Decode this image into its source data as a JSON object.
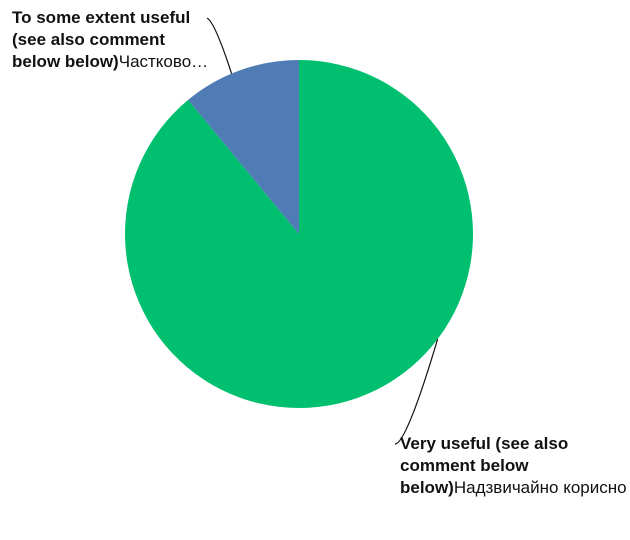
{
  "chart_data": {
    "type": "pie",
    "title": "",
    "start_angle_deg": 0,
    "direction": "clockwise",
    "slices": [
      {
        "label_bold": "Very useful (see also comment below below)",
        "label_rest": "Надзвичайно корисно",
        "value": 89,
        "color": "#00BF6F"
      },
      {
        "label_bold": "To some extent useful (see also comment below below)",
        "label_rest": "Частково…",
        "value": 11,
        "color": "#507CB6"
      }
    ],
    "legend": "none",
    "leader_line_color": "#111111"
  }
}
